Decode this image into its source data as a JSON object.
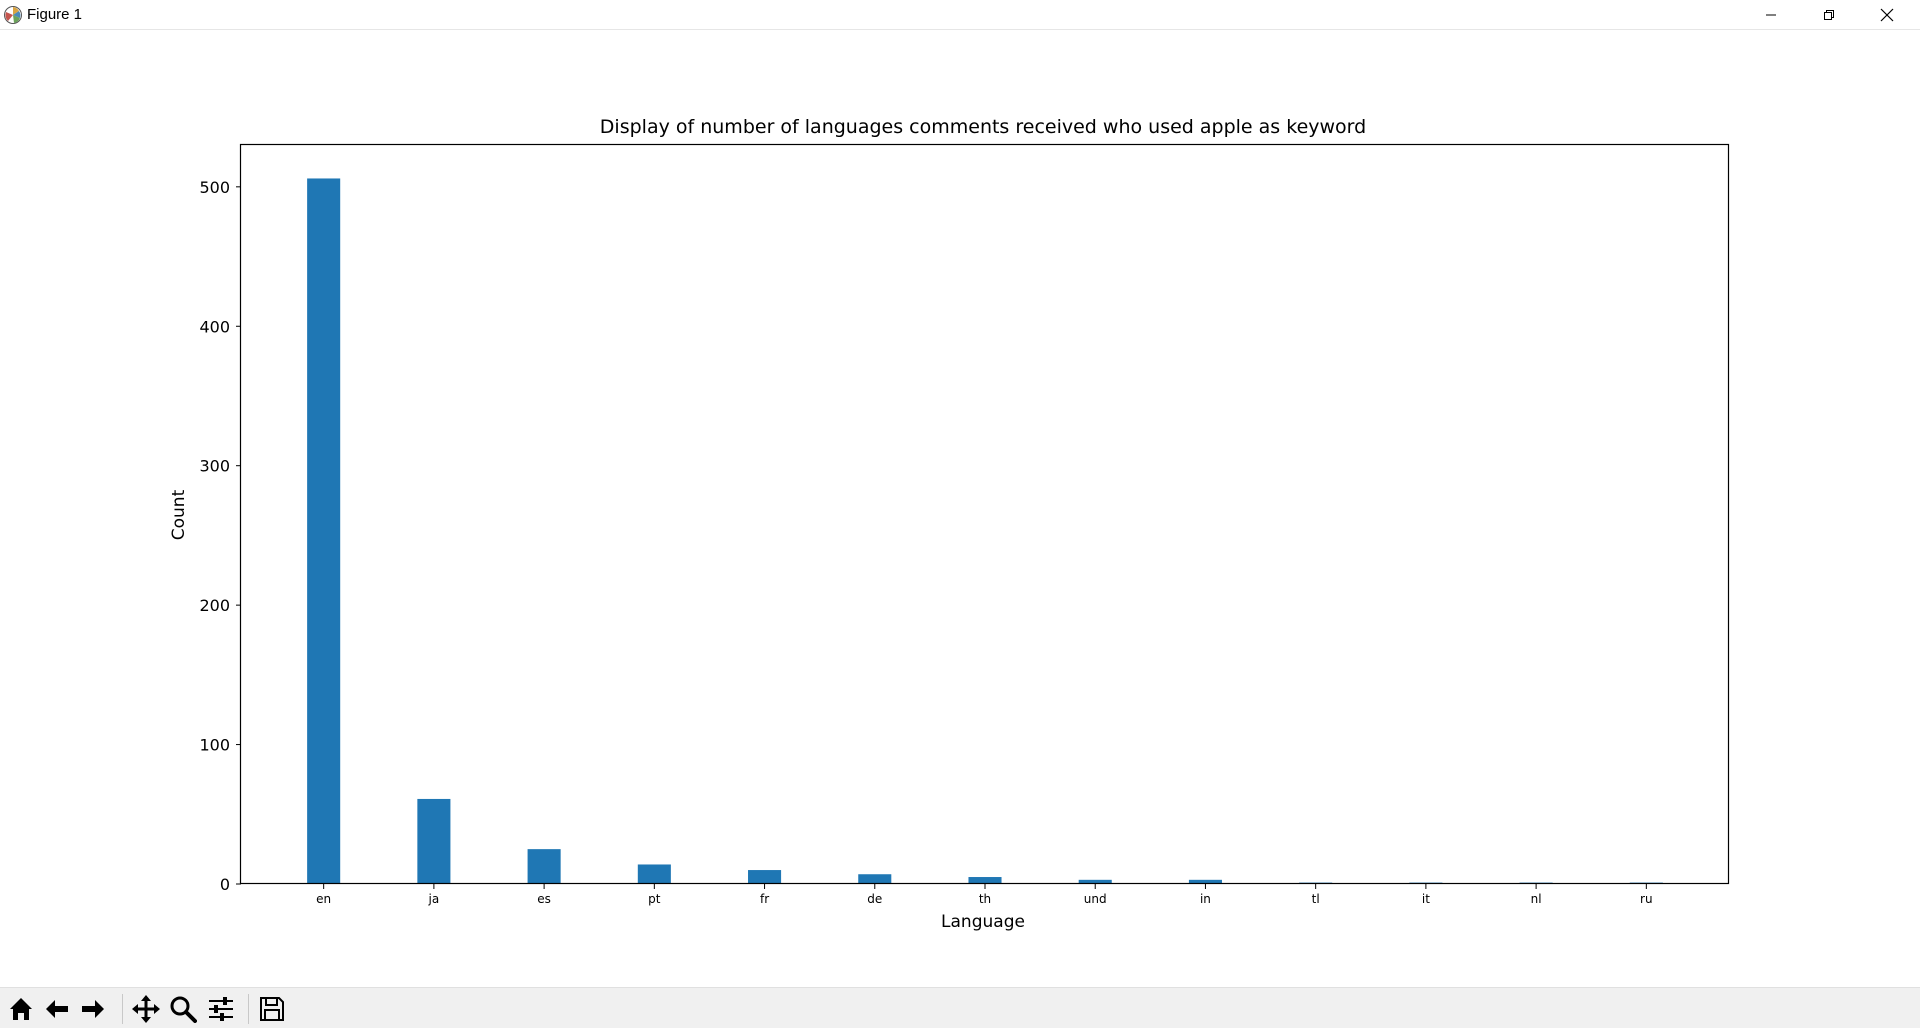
{
  "window": {
    "title": "Figure 1",
    "icons": {
      "app": "matplotlib-logo-icon",
      "minimize": "minimize-icon",
      "restore": "restore-icon",
      "close": "close-icon"
    }
  },
  "toolbar": {
    "buttons": [
      {
        "name": "home-icon"
      },
      {
        "name": "back-arrow-icon"
      },
      {
        "name": "forward-arrow-icon"
      },
      {
        "name": "pan-icon"
      },
      {
        "name": "zoom-icon"
      },
      {
        "name": "configure-subplots-icon"
      },
      {
        "name": "save-icon"
      }
    ]
  },
  "chart_data": {
    "type": "bar",
    "title": "Display of number of languages comments received who used apple as keyword",
    "xlabel": "Language",
    "ylabel": "Count",
    "categories": [
      "en",
      "ja",
      "es",
      "pt",
      "fr",
      "de",
      "th",
      "und",
      "in",
      "tl",
      "it",
      "nl",
      "ru"
    ],
    "values": [
      506,
      61,
      25,
      14,
      10,
      7,
      5,
      3,
      3,
      1,
      1,
      1,
      1
    ],
    "ylim": [
      0,
      530
    ],
    "yticks": [
      0,
      100,
      200,
      300,
      400,
      500
    ],
    "color": "#1f77b4",
    "grid": false,
    "legend": false
  }
}
